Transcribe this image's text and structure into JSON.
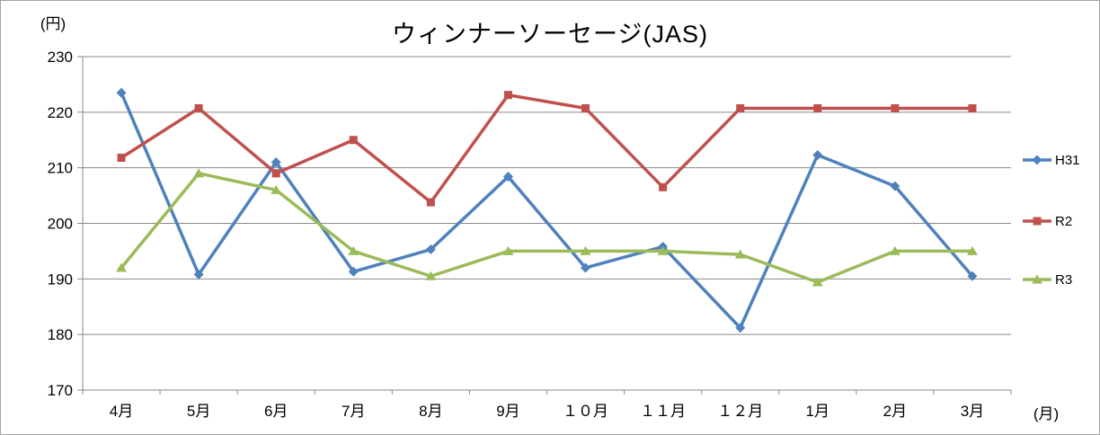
{
  "chart_data": {
    "type": "line",
    "title": "ウィンナーソーセージ(JAS)",
    "y_unit": "(円)",
    "x_unit": "(月)",
    "categories": [
      "4月",
      "5月",
      "6月",
      "7月",
      "8月",
      "9月",
      "１０月",
      "１１月",
      "１２月",
      "1月",
      "2月",
      "3月"
    ],
    "series": [
      {
        "name": "H31",
        "color": "#4F81BD",
        "marker": "diamond",
        "values": [
          223.5,
          190.8,
          211.0,
          191.3,
          195.3,
          208.4,
          192.0,
          195.8,
          181.2,
          212.3,
          206.7,
          190.5
        ]
      },
      {
        "name": "R2",
        "color": "#C0504D",
        "marker": "square",
        "values": [
          211.8,
          220.7,
          209.0,
          215.0,
          203.8,
          223.1,
          220.7,
          206.5,
          220.7,
          220.7,
          220.7,
          220.7
        ]
      },
      {
        "name": "R3",
        "color": "#9BBB59",
        "marker": "triangle",
        "values": [
          192.0,
          209.0,
          206.0,
          195.0,
          190.5,
          195.0,
          195.0,
          195.0,
          194.4,
          189.4,
          195.0,
          195.0
        ]
      }
    ],
    "ylim": [
      170,
      230
    ],
    "ytick_step": 10,
    "grid": true,
    "legend_position": "right",
    "grid_color": "#898989",
    "axis_color": "#898989"
  }
}
